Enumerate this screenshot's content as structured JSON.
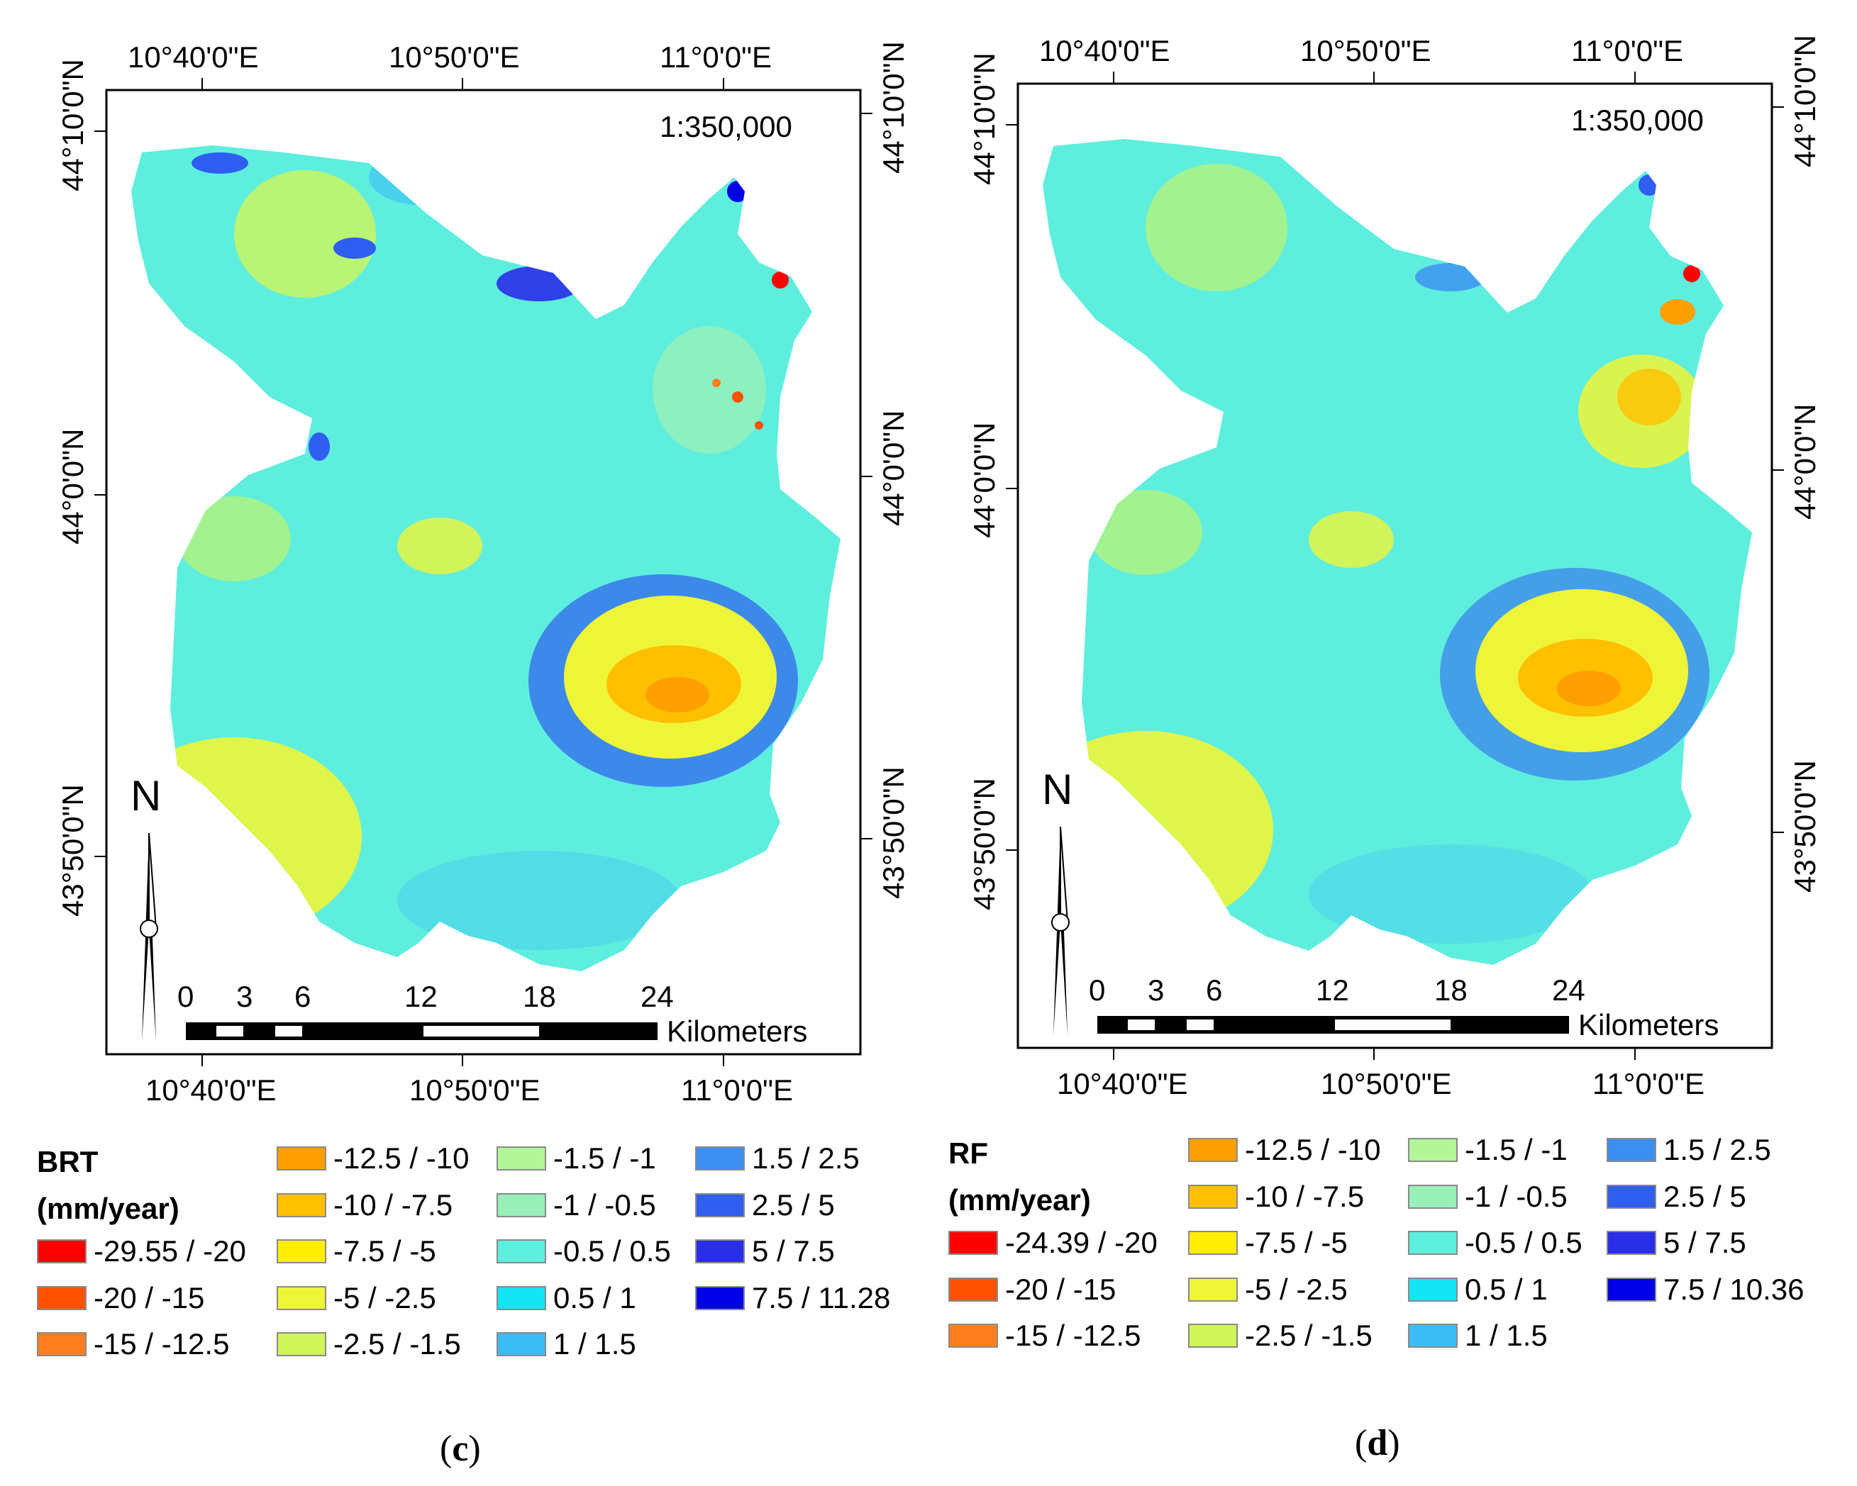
{
  "panels": [
    {
      "id": "c",
      "caption_open": "(",
      "caption_letter": "c",
      "caption_close": ")",
      "scale_ratio": "1:350,000",
      "top_lon_labels": [
        "10°40'0\"E",
        "10°50'0\"E",
        "11°0'0\"E"
      ],
      "bottom_lon_labels": [
        "10°40'0\"E",
        "10°50'0\"E",
        "11°0'0\"E"
      ],
      "left_lat_labels": [
        "44°10'0\"N",
        "44°0'0\"N",
        "43°50'0\"N"
      ],
      "right_lat_labels": [
        "44°10'0\"N",
        "44°0'0\"N",
        "43°50'0\"N"
      ],
      "north_label": "N",
      "scalebar_ticks": [
        "0",
        "3",
        "6",
        "12",
        "18",
        "24"
      ],
      "scalebar_unit": "Kilometers",
      "legend_title": "BRT",
      "legend_unit": "(mm/year)",
      "legend_items": [
        {
          "label": "-29.55 / -20",
          "color": "#ff0000"
        },
        {
          "label": "-20 / -15",
          "color": "#ff5200"
        },
        {
          "label": "-15 / -12.5",
          "color": "#ff7f1e"
        },
        {
          "label": "-12.5 / -10",
          "color": "#ff9f00"
        },
        {
          "label": "-10 / -7.5",
          "color": "#ffc000"
        },
        {
          "label": "-7.5 / -5",
          "color": "#ffee00"
        },
        {
          "label": "-5 / -2.5",
          "color": "#eef538"
        },
        {
          "label": "-2.5 / -1.5",
          "color": "#d0f55a"
        },
        {
          "label": "-1.5 / -1",
          "color": "#b4f59a"
        },
        {
          "label": "-1 / -0.5",
          "color": "#98f0b8"
        },
        {
          "label": "-0.5 / 0.5",
          "color": "#5eeede"
        },
        {
          "label": "0.5 / 1",
          "color": "#14e5f5"
        },
        {
          "label": "1 / 1.5",
          "color": "#3cbcf5"
        },
        {
          "label": "1.5 / 2.5",
          "color": "#3c8ef0"
        },
        {
          "label": "2.5 / 5",
          "color": "#2f5ef0"
        },
        {
          "label": "5 / 7.5",
          "color": "#2a2ee8"
        },
        {
          "label": "7.5 / 11.28",
          "color": "#0000e6"
        }
      ]
    },
    {
      "id": "d",
      "caption_open": "(",
      "caption_letter": "d",
      "caption_close": ")",
      "scale_ratio": "1:350,000",
      "top_lon_labels": [
        "10°40'0\"E",
        "10°50'0\"E",
        "11°0'0\"E"
      ],
      "bottom_lon_labels": [
        "10°40'0\"E",
        "10°50'0\"E",
        "11°0'0\"E"
      ],
      "left_lat_labels": [
        "44°10'0\"N",
        "44°0'0\"N",
        "43°50'0\"N"
      ],
      "right_lat_labels": [
        "44°10'0\"N",
        "44°0'0\"N",
        "43°50'0\"N"
      ],
      "north_label": "N",
      "scalebar_ticks": [
        "0",
        "3",
        "6",
        "12",
        "18",
        "24"
      ],
      "scalebar_unit": "Kilometers",
      "legend_title": "RF",
      "legend_unit": "(mm/year)",
      "legend_items": [
        {
          "label": "-24.39 / -20",
          "color": "#ff0000"
        },
        {
          "label": "-20 / -15",
          "color": "#ff5200"
        },
        {
          "label": "-15 / -12.5",
          "color": "#ff7f1e"
        },
        {
          "label": "-12.5 / -10",
          "color": "#ff9f00"
        },
        {
          "label": "-10 / -7.5",
          "color": "#ffc000"
        },
        {
          "label": "-7.5 / -5",
          "color": "#ffee00"
        },
        {
          "label": "-5 / -2.5",
          "color": "#eef538"
        },
        {
          "label": "-2.5 / -1.5",
          "color": "#d0f55a"
        },
        {
          "label": "-1.5 / -1",
          "color": "#b4f59a"
        },
        {
          "label": "-1 / -0.5",
          "color": "#98f0b8"
        },
        {
          "label": "-0.5 / 0.5",
          "color": "#5eeede"
        },
        {
          "label": "0.5 / 1",
          "color": "#14e5f5"
        },
        {
          "label": "1 / 1.5",
          "color": "#3cbcf5"
        },
        {
          "label": "1.5 / 2.5",
          "color": "#3c8ef0"
        },
        {
          "label": "2.5 / 5",
          "color": "#2f5ef0"
        },
        {
          "label": "5 / 7.5",
          "color": "#2a2ee8"
        },
        {
          "label": "7.5 / 10.36",
          "color": "#0000e6"
        }
      ]
    }
  ]
}
